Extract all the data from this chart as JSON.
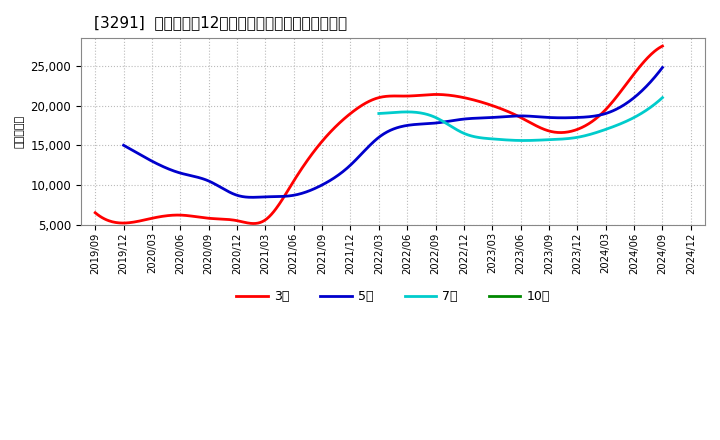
{
  "title": "[3291]  当期純利益12か月移動合計の標準偏差の推移",
  "ylabel": "（百万円）",
  "ylim": [
    5000,
    28500
  ],
  "yticks": [
    5000,
    10000,
    15000,
    20000,
    25000
  ],
  "background_color": "#ffffff",
  "grid_color": "#bbbbbb",
  "series": {
    "3年": {
      "color": "#ff0000",
      "data": [
        [
          "2019/09",
          6500
        ],
        [
          "2019/12",
          5200
        ],
        [
          "2020/03",
          5800
        ],
        [
          "2020/06",
          6200
        ],
        [
          "2020/09",
          5800
        ],
        [
          "2020/12",
          5500
        ],
        [
          "2021/03",
          5600
        ],
        [
          "2021/06",
          10500
        ],
        [
          "2021/09",
          15500
        ],
        [
          "2021/12",
          19000
        ],
        [
          "2022/03",
          21000
        ],
        [
          "2022/06",
          21200
        ],
        [
          "2022/09",
          21400
        ],
        [
          "2022/12",
          21000
        ],
        [
          "2023/03",
          20000
        ],
        [
          "2023/06",
          18500
        ],
        [
          "2023/09",
          16800
        ],
        [
          "2023/12",
          17000
        ],
        [
          "2024/03",
          19500
        ],
        [
          "2024/06",
          24000
        ],
        [
          "2024/09",
          27500
        ]
      ]
    },
    "5年": {
      "color": "#0000cc",
      "data": [
        [
          "2019/12",
          15000
        ],
        [
          "2020/03",
          13000
        ],
        [
          "2020/06",
          11500
        ],
        [
          "2020/09",
          10500
        ],
        [
          "2020/12",
          8700
        ],
        [
          "2021/03",
          8500
        ],
        [
          "2021/06",
          8700
        ],
        [
          "2021/09",
          10000
        ],
        [
          "2021/12",
          12500
        ],
        [
          "2022/03",
          16000
        ],
        [
          "2022/06",
          17500
        ],
        [
          "2022/09",
          17800
        ],
        [
          "2022/12",
          18300
        ],
        [
          "2023/03",
          18500
        ],
        [
          "2023/06",
          18700
        ],
        [
          "2023/09",
          18500
        ],
        [
          "2023/12",
          18500
        ],
        [
          "2024/03",
          19000
        ],
        [
          "2024/06",
          21000
        ],
        [
          "2024/09",
          24800
        ]
      ]
    },
    "7年": {
      "color": "#00cccc",
      "data": [
        [
          "2022/03",
          19000
        ],
        [
          "2022/06",
          19200
        ],
        [
          "2022/09",
          18500
        ],
        [
          "2022/12",
          16500
        ],
        [
          "2023/03",
          15800
        ],
        [
          "2023/06",
          15600
        ],
        [
          "2023/09",
          15700
        ],
        [
          "2023/12",
          16000
        ],
        [
          "2024/03",
          17000
        ],
        [
          "2024/06",
          18500
        ],
        [
          "2024/09",
          21000
        ]
      ]
    },
    "10年": {
      "color": "#008800",
      "data": []
    }
  },
  "series_order": [
    "3年",
    "5年",
    "7年",
    "10年"
  ],
  "xtick_labels": [
    "2019/09",
    "2019/12",
    "2020/03",
    "2020/06",
    "2020/09",
    "2020/12",
    "2021/03",
    "2021/06",
    "2021/09",
    "2021/12",
    "2022/03",
    "2022/06",
    "2022/09",
    "2022/12",
    "2023/03",
    "2023/06",
    "2023/09",
    "2023/12",
    "2024/03",
    "2024/06",
    "2024/09",
    "2024/12"
  ]
}
